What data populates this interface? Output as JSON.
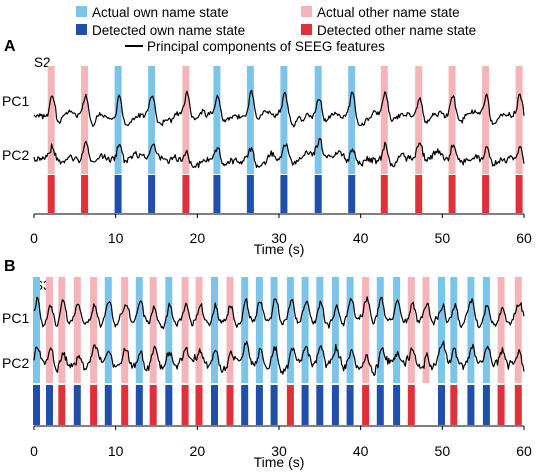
{
  "legend": {
    "items": [
      {
        "key": "actual_own",
        "label": "Actual own name state",
        "color": "#7cc4ea"
      },
      {
        "key": "actual_other",
        "label": "Actual other name state",
        "color": "#f5b4b8"
      },
      {
        "key": "detected_own",
        "label": "Detected own name state",
        "color": "#1f4fa8"
      },
      {
        "key": "detected_other",
        "label": "Detected other name state",
        "color": "#e0313a"
      },
      {
        "key": "pc",
        "label": "Principal components of SEEG features",
        "color": "#000000"
      }
    ]
  },
  "chart_data": [
    {
      "type": "line",
      "panel_label": "A",
      "subject": "S2",
      "xlabel": "Time (s)",
      "xlim": [
        0,
        60
      ],
      "xticks": [
        0,
        10,
        20,
        30,
        40,
        50,
        60
      ],
      "series": [
        {
          "name": "PC1"
        },
        {
          "name": "PC2"
        }
      ],
      "trials": [
        {
          "t": 2.1,
          "actual": "other",
          "detected": "other"
        },
        {
          "t": 6.2,
          "actual": "other",
          "detected": "other"
        },
        {
          "t": 10.3,
          "actual": "own",
          "detected": "own"
        },
        {
          "t": 14.4,
          "actual": "own",
          "detected": "own"
        },
        {
          "t": 18.6,
          "actual": "other",
          "detected": "other"
        },
        {
          "t": 22.4,
          "actual": "own",
          "detected": "own"
        },
        {
          "t": 26.5,
          "actual": "own",
          "detected": "own"
        },
        {
          "t": 30.6,
          "actual": "own",
          "detected": "own"
        },
        {
          "t": 34.8,
          "actual": "own",
          "detected": "own"
        },
        {
          "t": 38.9,
          "actual": "own",
          "detected": "own"
        },
        {
          "t": 42.9,
          "actual": "other",
          "detected": "other"
        },
        {
          "t": 47.1,
          "actual": "other",
          "detected": "other"
        },
        {
          "t": 51.2,
          "actual": "other",
          "detected": "other"
        },
        {
          "t": 55.3,
          "actual": "other",
          "detected": "other"
        },
        {
          "t": 59.4,
          "actual": "other",
          "detected": "other"
        }
      ]
    },
    {
      "type": "line",
      "panel_label": "B",
      "subject": "S3",
      "xlabel": "Time (s)",
      "xlim": [
        0,
        60
      ],
      "xticks": [
        0,
        10,
        20,
        30,
        40,
        50,
        60
      ],
      "series": [
        {
          "name": "PC1"
        },
        {
          "name": "PC2"
        }
      ],
      "trials": [
        {
          "t": 0.3,
          "actual": "own",
          "detected": "own"
        },
        {
          "t": 1.9,
          "actual": "other",
          "detected": "own"
        },
        {
          "t": 3.4,
          "actual": "other",
          "detected": "other"
        },
        {
          "t": 5.3,
          "actual": "other",
          "detected": "own"
        },
        {
          "t": 7.3,
          "actual": "other",
          "detected": "other"
        },
        {
          "t": 9.1,
          "actual": "own",
          "detected": "own"
        },
        {
          "t": 11.1,
          "actual": "other",
          "detected": "other"
        },
        {
          "t": 12.9,
          "actual": "own",
          "detected": "own"
        },
        {
          "t": 14.6,
          "actual": "other",
          "detected": "other"
        },
        {
          "t": 16.5,
          "actual": "own",
          "detected": "own"
        },
        {
          "t": 18.5,
          "actual": "other",
          "detected": "other"
        },
        {
          "t": 20.2,
          "actual": "other",
          "detected": "other"
        },
        {
          "t": 22.1,
          "actual": "own",
          "detected": "own"
        },
        {
          "t": 24.0,
          "actual": "other",
          "detected": "other"
        },
        {
          "t": 25.8,
          "actual": "own",
          "detected": "own"
        },
        {
          "t": 27.6,
          "actual": "own",
          "detected": "own"
        },
        {
          "t": 29.4,
          "actual": "own",
          "detected": "own"
        },
        {
          "t": 31.4,
          "actual": "own",
          "detected": "other"
        },
        {
          "t": 33.2,
          "actual": "own",
          "detected": "own"
        },
        {
          "t": 35.0,
          "actual": "own",
          "detected": "own"
        },
        {
          "t": 36.9,
          "actual": "own",
          "detected": "own"
        },
        {
          "t": 38.7,
          "actual": "own",
          "detected": "own"
        },
        {
          "t": 40.6,
          "actual": "other",
          "detected": "other"
        },
        {
          "t": 42.4,
          "actual": "own",
          "detected": "own"
        },
        {
          "t": 44.4,
          "actual": "own",
          "detected": "own"
        },
        {
          "t": 46.2,
          "actual": "other",
          "detected": "other"
        },
        {
          "t": 48.0,
          "actual": "other",
          "detected": "none"
        },
        {
          "t": 49.9,
          "actual": "own",
          "detected": "own"
        },
        {
          "t": 51.4,
          "actual": "own",
          "detected": "other"
        },
        {
          "t": 53.5,
          "actual": "own",
          "detected": "own"
        },
        {
          "t": 55.4,
          "actual": "own",
          "detected": "own"
        },
        {
          "t": 57.2,
          "actual": "other",
          "detected": "other"
        },
        {
          "t": 59.3,
          "actual": "other",
          "detected": "other"
        }
      ]
    }
  ]
}
